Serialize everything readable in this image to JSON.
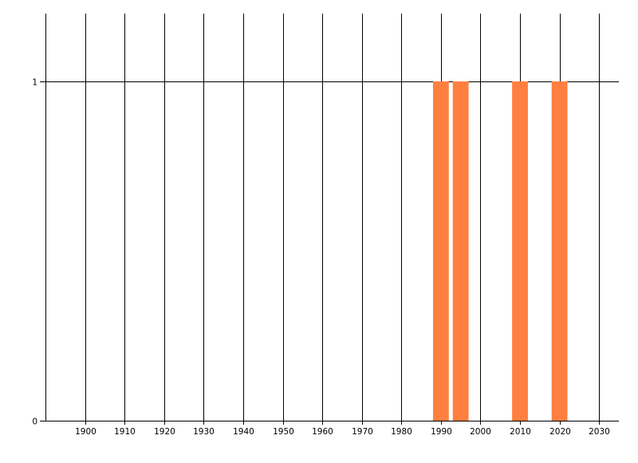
{
  "chart_data": {
    "type": "bar",
    "x": [
      1990,
      1995,
      2010,
      2020
    ],
    "values": [
      1,
      1,
      1,
      1
    ],
    "bar_width_years": 4,
    "xlim": [
      1890,
      2035
    ],
    "ylim": [
      0,
      1.2
    ],
    "x_ticks": [
      "1900",
      "1910",
      "1920",
      "1930",
      "1940",
      "1950",
      "1960",
      "1970",
      "1980",
      "1990",
      "2000",
      "2010",
      "2020",
      "2030"
    ],
    "y_ticks": [
      "0",
      "1"
    ],
    "grid": true,
    "title": "",
    "xlabel": "",
    "ylabel": "",
    "bar_color": "#FF7F40",
    "grid_color": "#000000"
  }
}
